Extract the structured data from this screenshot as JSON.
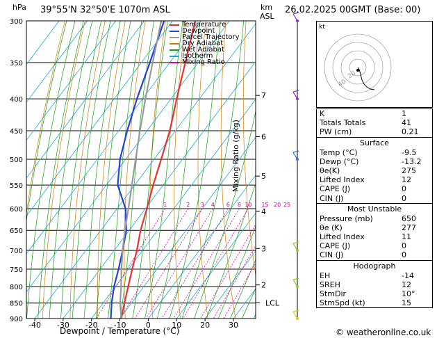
{
  "header": {
    "title": "39°55'N 32°50'E 1070m ASL",
    "date": "26.02.2025 00GMT (Base: 00)",
    "hpa_label": "hPa",
    "km_label": "km",
    "asl_label": "ASL"
  },
  "footer": {
    "copyright": "© weatheronline.co.uk"
  },
  "chart_data": {
    "type": "line",
    "title": "39°55'N 32°50'E 1070m ASL",
    "xlabel": "Dewpoint / Temperature (°C)",
    "ylabel": "hPa",
    "y2label": "Mixing Ratio (g/kg)",
    "xlim": [
      -40,
      35
    ],
    "ylim": [
      900,
      300
    ],
    "y_log": true,
    "skew": true,
    "x_ticks": [
      -40,
      -30,
      -20,
      -10,
      0,
      10,
      20,
      30
    ],
    "pressure_levels": [
      300,
      350,
      400,
      450,
      500,
      550,
      600,
      650,
      700,
      750,
      800,
      850,
      900
    ],
    "km_ticks": [
      {
        "label": "7",
        "p": 395
      },
      {
        "label": "6",
        "p": 460
      },
      {
        "label": "5",
        "p": 532
      },
      {
        "label": "4",
        "p": 606
      },
      {
        "label": "3",
        "p": 695
      },
      {
        "label": "2",
        "p": 795
      },
      {
        "label": "LCL",
        "p": 849
      }
    ],
    "mixing_ratio_labels": [
      "1",
      "2",
      "3",
      "4",
      "6",
      "8",
      "10",
      "15",
      "20",
      "25"
    ],
    "legend": {
      "placement": "top-left",
      "entries": [
        {
          "name": "Temperature",
          "color": "#e83030"
        },
        {
          "name": "Dewpoint",
          "color": "#2040e0"
        },
        {
          "name": "Parcel Trajectory",
          "color": "#9a9a9a"
        },
        {
          "name": "Dry Adiabat",
          "color": "#d07a00"
        },
        {
          "name": "Wet Adiabat",
          "color": "#10a010"
        },
        {
          "name": "Isotherm",
          "color": "#20a8d8"
        },
        {
          "name": "Mixing Ratio",
          "color": "#d000a0"
        }
      ]
    },
    "series": [
      {
        "name": "Temperature",
        "color": "#e83030",
        "points": [
          [
            900,
            -9.5
          ],
          [
            850,
            -12.5
          ],
          [
            800,
            -15.5
          ],
          [
            750,
            -18.7
          ],
          [
            700,
            -22
          ],
          [
            650,
            -26
          ],
          [
            600,
            -29.5
          ],
          [
            550,
            -33.5
          ],
          [
            500,
            -37.5
          ],
          [
            450,
            -42
          ],
          [
            400,
            -48
          ],
          [
            350,
            -54.5
          ],
          [
            300,
            -62
          ]
        ]
      },
      {
        "name": "Dewpoint",
        "color": "#2040e0",
        "points": [
          [
            900,
            -13.2
          ],
          [
            850,
            -17
          ],
          [
            800,
            -20.5
          ],
          [
            750,
            -23.5
          ],
          [
            700,
            -27
          ],
          [
            650,
            -31
          ],
          [
            600,
            -37
          ],
          [
            550,
            -46
          ],
          [
            500,
            -52
          ],
          [
            450,
            -57
          ],
          [
            400,
            -62
          ],
          [
            350,
            -67
          ],
          [
            300,
            -73
          ]
        ]
      },
      {
        "name": "Parcel Trajectory",
        "color": "#9a9a9a",
        "points": [
          [
            900,
            -9.5
          ],
          [
            850,
            -14
          ],
          [
            800,
            -18
          ],
          [
            750,
            -22.5
          ],
          [
            700,
            -27
          ],
          [
            650,
            -31.5
          ],
          [
            600,
            -36
          ],
          [
            550,
            -41
          ],
          [
            500,
            -46.5
          ],
          [
            450,
            -52.5
          ],
          [
            400,
            -59
          ],
          [
            350,
            -66
          ],
          [
            300,
            -74
          ]
        ]
      }
    ],
    "wind_barbs": [
      {
        "p": 300,
        "color": "#8a2be2"
      },
      {
        "p": 400,
        "color": "#8a2be2"
      },
      {
        "p": 500,
        "color": "#3a6ae0"
      },
      {
        "p": 700,
        "color": "#8acc20"
      },
      {
        "p": 800,
        "color": "#8acc20"
      },
      {
        "p": 900,
        "color": "#d0d000"
      }
    ]
  },
  "hodograph": {
    "label": "kt",
    "ring_labels": [
      "20",
      "40"
    ],
    "trace": [
      [
        0,
        0
      ],
      [
        2,
        -3
      ],
      [
        4,
        -10
      ],
      [
        6,
        -18
      ],
      [
        9,
        -24
      ],
      [
        13,
        -28
      ],
      [
        18,
        -31
      ],
      [
        24,
        -32
      ]
    ]
  },
  "indices": [
    {
      "label": "K",
      "value": "1"
    },
    {
      "label": "Totals Totals",
      "value": "41"
    },
    {
      "label": "PW (cm)",
      "value": "0.21"
    }
  ],
  "surface": {
    "title": "Surface",
    "rows": [
      {
        "label": "Temp (°C)",
        "value": "-9.5"
      },
      {
        "label": "Dewp (°C)",
        "value": "-13.2"
      },
      {
        "label": "θe(K)",
        "value": "275"
      },
      {
        "label": "Lifted Index",
        "value": "12"
      },
      {
        "label": "CAPE (J)",
        "value": "0"
      },
      {
        "label": "CIN (J)",
        "value": "0"
      }
    ]
  },
  "most_unstable": {
    "title": "Most Unstable",
    "rows": [
      {
        "label": "Pressure (mb)",
        "value": "650"
      },
      {
        "label": "θe (K)",
        "value": "277"
      },
      {
        "label": "Lifted Index",
        "value": "11"
      },
      {
        "label": "CAPE (J)",
        "value": "0"
      },
      {
        "label": "CIN (J)",
        "value": "0"
      }
    ]
  },
  "hodograph_table": {
    "title": "Hodograph",
    "rows": [
      {
        "label": "EH",
        "value": "-14"
      },
      {
        "label": "SREH",
        "value": "12"
      },
      {
        "label": "StmDir",
        "value": "10°"
      },
      {
        "label": "StmSpd (kt)",
        "value": "15"
      }
    ]
  }
}
